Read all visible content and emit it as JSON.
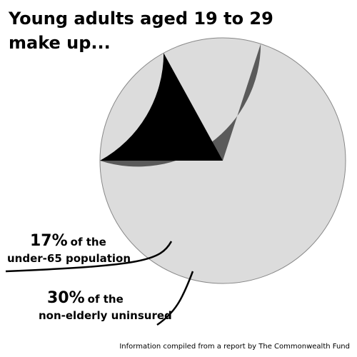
{
  "chart_data": {
    "type": "pie",
    "title": [
      "Young adults aged 19 to 29",
      "make up..."
    ],
    "values": [
      17,
      30
    ],
    "value_labels": [
      "17%",
      "30%"
    ],
    "annotations": [
      [
        "of the",
        "under-65 population"
      ],
      [
        "of the",
        "non-elderly uninsured"
      ]
    ],
    "colors": [
      "#000000",
      "#5a5a5a"
    ],
    "rest_color": "#dcdcdc",
    "source": "Information compiled from a report by The Commonwealth Fund"
  }
}
